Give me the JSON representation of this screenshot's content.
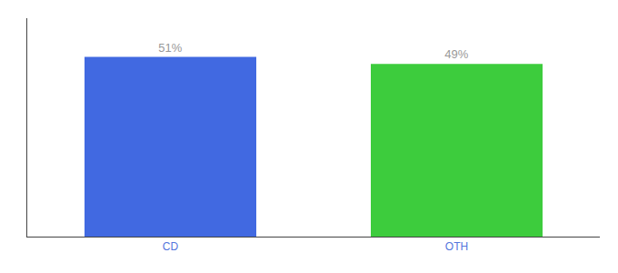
{
  "chart_data": {
    "type": "bar",
    "categories": [
      "CD",
      "OTH"
    ],
    "values": [
      51,
      49
    ],
    "value_labels": [
      "51%",
      "49%"
    ],
    "data_labels": true,
    "colors": [
      "#4169E1",
      "#3DCC3D"
    ],
    "ylim": [
      0,
      62
    ],
    "tick_labels": "x",
    "grid": false
  }
}
